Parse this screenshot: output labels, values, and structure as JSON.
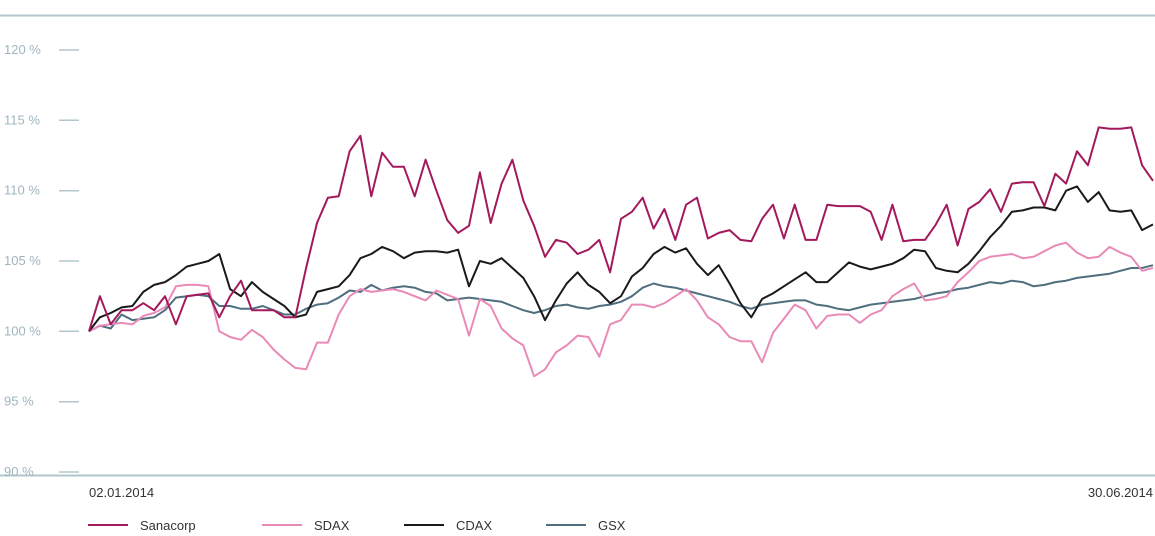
{
  "chart_data": {
    "type": "line",
    "title": "",
    "xlabel": "",
    "ylabel": "",
    "x_start_label": "02.01.2014",
    "x_end_label": "30.06.2014",
    "ylim": [
      90,
      120
    ],
    "y_ticks": [
      90,
      95,
      100,
      105,
      110,
      115,
      120
    ],
    "y_tick_labels": [
      "90 %",
      "95 %",
      "100 %",
      "105 %",
      "110 %",
      "115 %",
      "120 %"
    ],
    "grid": false,
    "legend_position": "bottom-left",
    "series": [
      {
        "name": "Sanacorp",
        "color": "#a3195b",
        "values": [
          100.0,
          102.5,
          100.5,
          101.5,
          101.5,
          102.0,
          101.5,
          102.5,
          100.5,
          102.5,
          102.6,
          102.7,
          101.0,
          102.5,
          103.6,
          101.5,
          101.5,
          101.5,
          101.0,
          101.0,
          104.5,
          107.7,
          109.5,
          109.6,
          112.8,
          113.9,
          109.6,
          112.7,
          111.7,
          111.7,
          109.6,
          112.2,
          110.0,
          107.9,
          107.0,
          107.5,
          111.3,
          107.7,
          110.5,
          112.2,
          109.3,
          107.5,
          105.3,
          106.5,
          106.3,
          105.5,
          105.8,
          106.5,
          104.2,
          108.0,
          108.5,
          109.5,
          107.3,
          108.7,
          106.5,
          109.0,
          109.5,
          106.6,
          107.0,
          107.2,
          106.5,
          106.4,
          108.0,
          109.0,
          106.6,
          109.0,
          106.5,
          106.5,
          109.0,
          108.9,
          108.9,
          108.9,
          108.5,
          106.5,
          109.0,
          106.4,
          106.5,
          106.5,
          107.6,
          109.0,
          106.1,
          108.7,
          109.2,
          110.1,
          108.5,
          110.5,
          110.6,
          110.6,
          108.9,
          111.2,
          110.5,
          112.8,
          111.8,
          114.5,
          114.4,
          114.4,
          114.5,
          111.8,
          110.7
        ],
        "point_count": 99
      },
      {
        "name": "SDAX",
        "color": "#e98ab7",
        "values": [
          100.0,
          100.4,
          100.5,
          100.6,
          100.5,
          101.1,
          101.3,
          101.7,
          103.2,
          103.3,
          103.3,
          103.2,
          100.0,
          99.6,
          99.4,
          100.1,
          99.6,
          98.7,
          98.0,
          97.4,
          97.3,
          99.2,
          99.2,
          101.2,
          102.5,
          103.0,
          102.8,
          102.9,
          103.0,
          102.8,
          102.5,
          102.2,
          102.9,
          102.6,
          102.3,
          99.7,
          102.3,
          101.8,
          100.2,
          99.5,
          99.0,
          96.8,
          97.3,
          98.5,
          99.0,
          99.7,
          99.6,
          98.2,
          100.5,
          100.8,
          101.9,
          101.9,
          101.7,
          102.0,
          102.5,
          103.0,
          102.2,
          101.0,
          100.5,
          99.6,
          99.3,
          99.3,
          97.8,
          99.9,
          100.9,
          101.9,
          101.5,
          100.2,
          101.1,
          101.2,
          101.2,
          100.6,
          101.2,
          101.5,
          102.5,
          103.0,
          103.4,
          102.2,
          102.3,
          102.5,
          103.5,
          104.2,
          105.0,
          105.3,
          105.4,
          105.5,
          105.2,
          105.3,
          105.7,
          106.1,
          106.3,
          105.6,
          105.2,
          105.3,
          106.0,
          105.6,
          105.3,
          104.3,
          104.5
        ],
        "point_count": 99
      },
      {
        "name": "CDAX",
        "color": "#1a1a1a",
        "values": [
          100.0,
          101.0,
          101.3,
          101.7,
          101.8,
          102.8,
          103.3,
          103.5,
          104.0,
          104.6,
          104.8,
          105.0,
          105.5,
          103.0,
          102.5,
          103.5,
          102.8,
          102.3,
          101.8,
          101.0,
          101.2,
          102.8,
          103.0,
          103.2,
          104.0,
          105.2,
          105.5,
          106.0,
          105.7,
          105.2,
          105.6,
          105.7,
          105.7,
          105.6,
          105.8,
          103.2,
          105.0,
          104.8,
          105.2,
          104.5,
          103.8,
          102.5,
          100.8,
          102.2,
          103.4,
          104.2,
          103.3,
          102.8,
          102.0,
          102.5,
          103.9,
          104.5,
          105.5,
          106.0,
          105.6,
          105.9,
          104.8,
          104.0,
          104.7,
          103.4,
          102.0,
          101.0,
          102.3,
          102.7,
          103.2,
          103.7,
          104.2,
          103.5,
          103.5,
          104.2,
          104.9,
          104.6,
          104.4,
          104.6,
          104.8,
          105.2,
          105.8,
          105.7,
          104.5,
          104.3,
          104.2,
          104.8,
          105.7,
          106.7,
          107.5,
          108.5,
          108.6,
          108.8,
          108.8,
          108.6,
          110.0,
          110.3,
          109.2,
          109.9,
          108.6,
          108.5,
          108.6,
          107.2,
          107.6
        ],
        "point_count": 99
      },
      {
        "name": "GSX",
        "color": "#4f6e7e",
        "values": [
          100.0,
          100.4,
          100.2,
          101.2,
          100.8,
          100.9,
          101.0,
          101.5,
          102.4,
          102.5,
          102.6,
          102.5,
          101.8,
          101.8,
          101.6,
          101.6,
          101.8,
          101.5,
          101.2,
          101.2,
          101.6,
          101.9,
          102.0,
          102.4,
          102.9,
          102.8,
          103.3,
          102.9,
          103.1,
          103.2,
          103.1,
          102.8,
          102.7,
          102.2,
          102.3,
          102.4,
          102.3,
          102.2,
          102.1,
          101.8,
          101.5,
          101.3,
          101.5,
          101.8,
          101.9,
          101.7,
          101.6,
          101.8,
          101.9,
          102.1,
          102.5,
          103.1,
          103.4,
          103.2,
          103.1,
          102.9,
          102.7,
          102.5,
          102.3,
          102.1,
          101.8,
          101.6,
          101.9,
          102.0,
          102.1,
          102.2,
          102.2,
          101.9,
          101.8,
          101.6,
          101.5,
          101.7,
          101.9,
          102.0,
          102.1,
          102.2,
          102.3,
          102.5,
          102.7,
          102.8,
          103.0,
          103.1,
          103.3,
          103.5,
          103.4,
          103.6,
          103.5,
          103.2,
          103.3,
          103.5,
          103.6,
          103.8,
          103.9,
          104.0,
          104.1,
          104.3,
          104.5,
          104.5,
          104.7
        ],
        "point_count": 99
      }
    ]
  }
}
